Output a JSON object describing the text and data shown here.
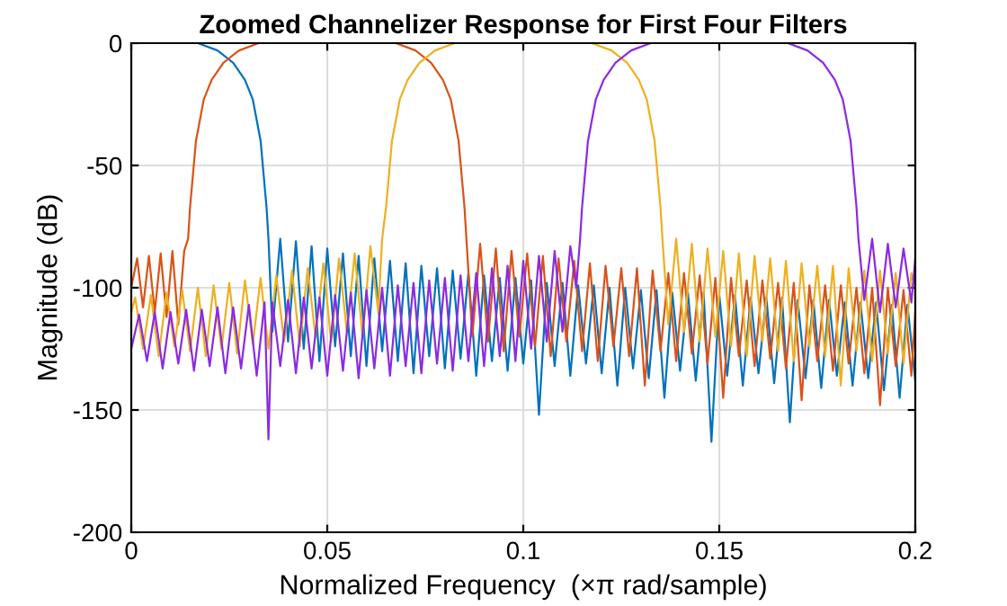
{
  "chart_data": {
    "type": "line",
    "title": "Zoomed Channelizer Response for First Four Filters",
    "xlabel": "Normalized Frequency  (×π rad/sample)",
    "ylabel": "Magnitude (dB)",
    "xlim": [
      0,
      0.2
    ],
    "xticks": [
      0,
      0.05,
      0.1,
      0.15,
      0.2
    ],
    "ylim": [
      -200,
      0
    ],
    "yticks": [
      -200,
      -150,
      -100,
      -50,
      0
    ],
    "grid": true,
    "line_style": "solid",
    "marker": "none",
    "series": [
      {
        "color": "#0072bd",
        "x": [
          0,
          0.017,
          0.022,
          0.026,
          0.029,
          0.031,
          0.033,
          0.0345,
          0.035,
          0.036,
          0.038,
          0.04,
          0.042,
          0.044,
          0.046,
          0.048,
          0.05,
          0.052,
          0.054,
          0.056,
          0.058,
          0.06,
          0.062,
          0.064,
          0.066,
          0.068,
          0.07,
          0.072,
          0.074,
          0.076,
          0.078,
          0.08,
          0.082,
          0.084,
          0.086,
          0.088,
          0.09,
          0.092,
          0.094,
          0.096,
          0.098,
          0.1,
          0.102,
          0.104,
          0.106,
          0.108,
          0.11,
          0.112,
          0.114,
          0.116,
          0.118,
          0.12,
          0.122,
          0.124,
          0.126,
          0.128,
          0.13,
          0.132,
          0.134,
          0.136,
          0.138,
          0.14,
          0.142,
          0.144,
          0.146,
          0.148,
          0.15,
          0.152,
          0.154,
          0.156,
          0.158,
          0.16,
          0.162,
          0.164,
          0.166,
          0.168,
          0.17,
          0.172,
          0.174,
          0.176,
          0.178,
          0.18,
          0.182,
          0.184,
          0.186,
          0.188,
          0.19,
          0.192,
          0.194,
          0.196,
          0.198,
          0.2
        ],
        "values": [
          0,
          0,
          -3,
          -8,
          -15,
          -23,
          -40,
          -67,
          -80,
          -118,
          -80,
          -122,
          -81,
          -125,
          -83,
          -130,
          -84,
          -124,
          -86,
          -128,
          -87,
          -132,
          -88,
          -126,
          -89,
          -130,
          -90,
          -135,
          -91,
          -128,
          -92,
          -133,
          -93,
          -129,
          -94,
          -136,
          -95,
          -130,
          -96,
          -134,
          -96,
          -131,
          -97,
          -152,
          -98,
          -132,
          -98,
          -136,
          -99,
          -131,
          -99,
          -135,
          -100,
          -140,
          -100,
          -133,
          -101,
          -137,
          -101,
          -145,
          -102,
          -134,
          -102,
          -138,
          -102,
          -163,
          -103,
          -136,
          -103,
          -140,
          -104,
          -135,
          -104,
          -139,
          -104,
          -155,
          -105,
          -137,
          -105,
          -141,
          -105,
          -136,
          -106,
          -140,
          -106,
          -137,
          -106,
          -142,
          -107,
          -145,
          -107,
          -138
        ]
      },
      {
        "color": "#d95319",
        "x": [
          0,
          0.0015,
          0.003,
          0.0045,
          0.006,
          0.0075,
          0.009,
          0.0105,
          0.012,
          0.0135,
          0.0145,
          0.015,
          0.0165,
          0.0185,
          0.0205,
          0.0235,
          0.0275,
          0.0325,
          0.0675,
          0.0725,
          0.0765,
          0.0795,
          0.0815,
          0.0835,
          0.085,
          0.0855,
          0.087,
          0.089,
          0.091,
          0.093,
          0.095,
          0.097,
          0.099,
          0.101,
          0.103,
          0.105,
          0.107,
          0.109,
          0.111,
          0.113,
          0.115,
          0.117,
          0.119,
          0.121,
          0.123,
          0.125,
          0.127,
          0.129,
          0.131,
          0.133,
          0.135,
          0.137,
          0.139,
          0.141,
          0.143,
          0.145,
          0.147,
          0.149,
          0.151,
          0.153,
          0.155,
          0.157,
          0.159,
          0.161,
          0.163,
          0.165,
          0.167,
          0.169,
          0.171,
          0.173,
          0.175,
          0.177,
          0.179,
          0.181,
          0.183,
          0.185,
          0.187,
          0.189,
          0.191,
          0.193,
          0.195,
          0.197,
          0.199,
          0.2
        ],
        "values": [
          -100,
          -88,
          -108,
          -87,
          -110,
          -86,
          -112,
          -85,
          -115,
          -85,
          -80,
          -67,
          -40,
          -23,
          -15,
          -8,
          -3,
          0,
          0,
          -3,
          -8,
          -15,
          -23,
          -40,
          -67,
          -80,
          -120,
          -82,
          -122,
          -84,
          -126,
          -85,
          -120,
          -86,
          -124,
          -87,
          -128,
          -88,
          -122,
          -89,
          -126,
          -90,
          -130,
          -91,
          -124,
          -92,
          -128,
          -92,
          -140,
          -93,
          -126,
          -94,
          -130,
          -94,
          -127,
          -95,
          -131,
          -96,
          -145,
          -96,
          -128,
          -97,
          -132,
          -97,
          -129,
          -98,
          -133,
          -98,
          -146,
          -99,
          -130,
          -99,
          -134,
          -99,
          -131,
          -100,
          -135,
          -100,
          -148,
          -100,
          -132,
          -101,
          -136,
          -110
        ]
      },
      {
        "color": "#edb120",
        "x": [
          0,
          0.001,
          0.003,
          0.005,
          0.007,
          0.009,
          0.011,
          0.013,
          0.015,
          0.017,
          0.019,
          0.021,
          0.023,
          0.025,
          0.027,
          0.029,
          0.031,
          0.033,
          0.035,
          0.037,
          0.039,
          0.041,
          0.043,
          0.045,
          0.047,
          0.049,
          0.051,
          0.053,
          0.055,
          0.057,
          0.059,
          0.061,
          0.063,
          0.064,
          0.065,
          0.0665,
          0.0685,
          0.0705,
          0.0735,
          0.0775,
          0.0825,
          0.1175,
          0.1225,
          0.1265,
          0.1295,
          0.1315,
          0.1335,
          0.135,
          0.1355,
          0.137,
          0.139,
          0.141,
          0.143,
          0.145,
          0.147,
          0.149,
          0.151,
          0.153,
          0.155,
          0.157,
          0.159,
          0.161,
          0.163,
          0.165,
          0.167,
          0.169,
          0.171,
          0.173,
          0.175,
          0.177,
          0.179,
          0.181,
          0.183,
          0.185,
          0.187,
          0.189,
          0.191,
          0.193,
          0.195,
          0.197,
          0.199,
          0.2
        ],
        "values": [
          -110,
          -104,
          -125,
          -103,
          -128,
          -102,
          -124,
          -101,
          -126,
          -100,
          -128,
          -99,
          -125,
          -98,
          -127,
          -97,
          -123,
          -96,
          -125,
          -95,
          -122,
          -93,
          -124,
          -92,
          -120,
          -90,
          -122,
          -88,
          -118,
          -86,
          -120,
          -83,
          -110,
          -80,
          -67,
          -40,
          -23,
          -15,
          -8,
          -3,
          0,
          0,
          -3,
          -8,
          -15,
          -23,
          -40,
          -67,
          -80,
          -115,
          -80,
          -118,
          -82,
          -122,
          -84,
          -120,
          -85,
          -124,
          -86,
          -128,
          -87,
          -122,
          -88,
          -126,
          -89,
          -130,
          -90,
          -124,
          -91,
          -128,
          -91,
          -140,
          -92,
          -126,
          -93,
          -130,
          -93,
          -127,
          -94,
          -131,
          -94,
          -100
        ]
      },
      {
        "color": "#8b2be2",
        "x": [
          0,
          0.002,
          0.004,
          0.006,
          0.008,
          0.01,
          0.012,
          0.014,
          0.016,
          0.018,
          0.02,
          0.022,
          0.024,
          0.026,
          0.028,
          0.03,
          0.032,
          0.034,
          0.035,
          0.036,
          0.038,
          0.04,
          0.042,
          0.044,
          0.046,
          0.048,
          0.05,
          0.052,
          0.054,
          0.056,
          0.058,
          0.06,
          0.062,
          0.064,
          0.066,
          0.068,
          0.07,
          0.072,
          0.074,
          0.076,
          0.078,
          0.08,
          0.082,
          0.084,
          0.086,
          0.088,
          0.09,
          0.092,
          0.094,
          0.096,
          0.098,
          0.1,
          0.102,
          0.104,
          0.106,
          0.108,
          0.11,
          0.112,
          0.1135,
          0.1145,
          0.115,
          0.1165,
          0.1185,
          0.1205,
          0.1235,
          0.1275,
          0.1325,
          0.1675,
          0.1725,
          0.1765,
          0.1795,
          0.1815,
          0.1835,
          0.185,
          0.1855,
          0.187,
          0.189,
          0.191,
          0.193,
          0.195,
          0.197,
          0.199,
          0.2
        ],
        "values": [
          -125,
          -111,
          -130,
          -110,
          -133,
          -110,
          -131,
          -109,
          -134,
          -109,
          -132,
          -108,
          -135,
          -108,
          -133,
          -107,
          -136,
          -106,
          -162,
          -106,
          -132,
          -105,
          -135,
          -104,
          -133,
          -104,
          -136,
          -103,
          -134,
          -102,
          -137,
          -101,
          -133,
          -100,
          -136,
          -99,
          -132,
          -98,
          -135,
          -97,
          -131,
          -96,
          -134,
          -95,
          -130,
          -94,
          -132,
          -92,
          -128,
          -91,
          -130,
          -89,
          -125,
          -87,
          -122,
          -85,
          -118,
          -83,
          -100,
          -80,
          -67,
          -40,
          -23,
          -15,
          -8,
          -3,
          0,
          0,
          -3,
          -8,
          -15,
          -23,
          -40,
          -67,
          -80,
          -105,
          -80,
          -110,
          -82,
          -108,
          -84,
          -106,
          -88
        ]
      }
    ]
  }
}
